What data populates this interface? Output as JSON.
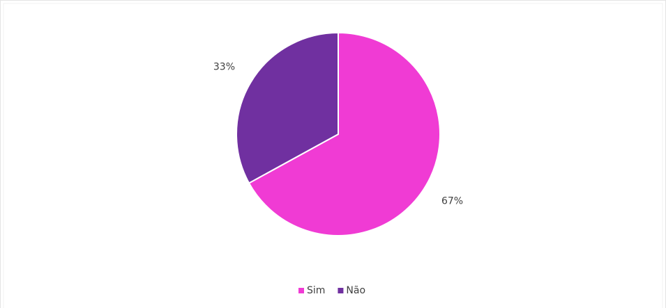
{
  "chart_data": {
    "type": "pie",
    "categories": [
      "Sim",
      "Não"
    ],
    "values": [
      67,
      33
    ],
    "value_labels": [
      "67%",
      "33%"
    ],
    "colors": [
      "#f03bd4",
      "#7030a0"
    ],
    "legend": "bottom"
  }
}
